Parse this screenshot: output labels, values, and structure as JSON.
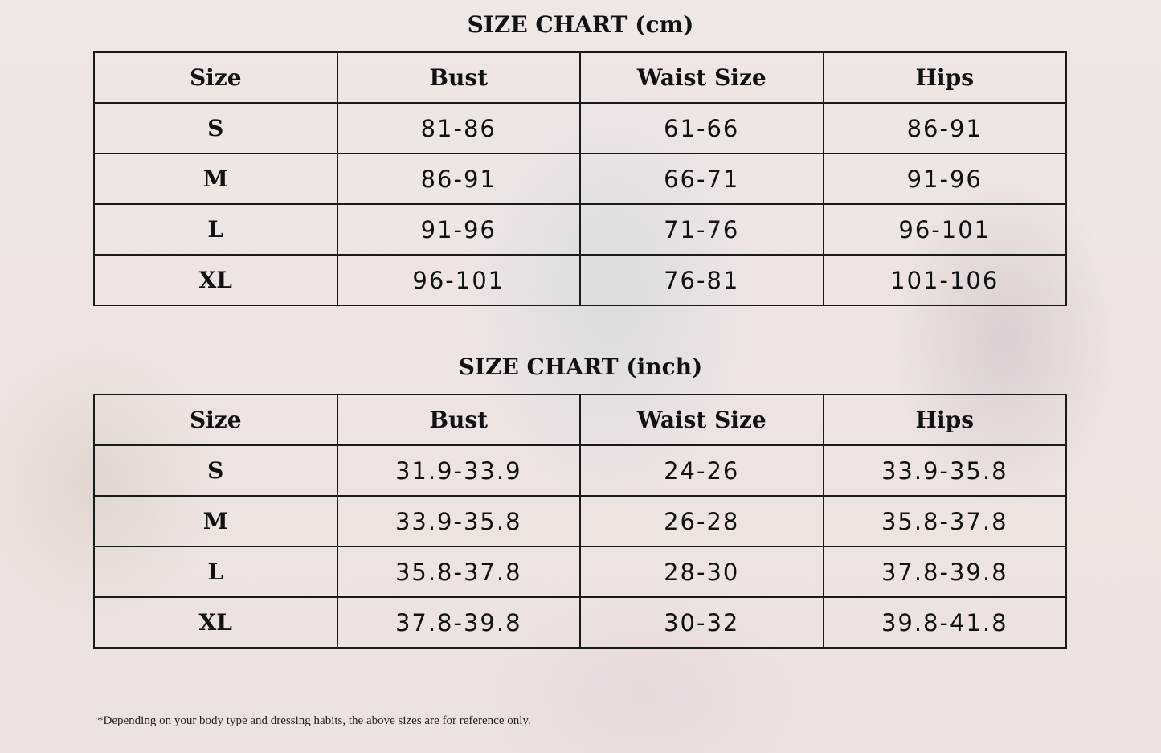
{
  "cm": {
    "title": "SIZE CHART (cm)",
    "headers": [
      "Size",
      "Bust",
      "Waist Size",
      "Hips"
    ],
    "rows": [
      [
        "S",
        "81-86",
        "61-66",
        "86-91"
      ],
      [
        "M",
        "86-91",
        "66-71",
        "91-96"
      ],
      [
        "L",
        "91-96",
        "71-76",
        "96-101"
      ],
      [
        "XL",
        "96-101",
        "76-81",
        "101-106"
      ]
    ]
  },
  "inch": {
    "title": "SIZE CHART (inch)",
    "headers": [
      "Size",
      "Bust",
      "Waist Size",
      "Hips"
    ],
    "rows": [
      [
        "S",
        "31.9-33.9",
        "24-26",
        "33.9-35.8"
      ],
      [
        "M",
        "33.9-35.8",
        "26-28",
        "35.8-37.8"
      ],
      [
        "L",
        "35.8-37.8",
        "28-30",
        "37.8-39.8"
      ],
      [
        "XL",
        "37.8-39.8",
        "30-32",
        "39.8-41.8"
      ]
    ]
  },
  "note": "*Depending on your body type and dressing habits, the above sizes are for reference only."
}
